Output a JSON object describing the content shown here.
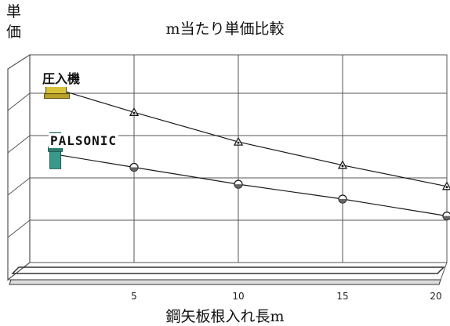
{
  "chart_data": {
    "type": "line",
    "title": "m当たり単価比較",
    "ylabel": "単価",
    "xlabel": "鋼矢板根入れ長m",
    "x_ticks": [
      5,
      10,
      15,
      20
    ],
    "xlim": [
      0,
      20
    ],
    "ylim": [
      0,
      5
    ],
    "grid": true,
    "series": [
      {
        "name": "圧入機",
        "marker": "triangle",
        "x": [
          1.3,
          5,
          10,
          15,
          20
        ],
        "y": [
          4.1,
          3.55,
          2.85,
          2.3,
          1.8
        ]
      },
      {
        "name": "PALSONIC",
        "marker": "circle",
        "x": [
          1.3,
          5,
          10,
          15,
          20
        ],
        "y": [
          2.55,
          2.25,
          1.85,
          1.5,
          1.1
        ]
      }
    ]
  },
  "colors": {
    "line": "#1a1a1a",
    "grid": "#555555",
    "machine_yellow": "#d9c33a",
    "machine_teal": "#3a9a8a"
  }
}
